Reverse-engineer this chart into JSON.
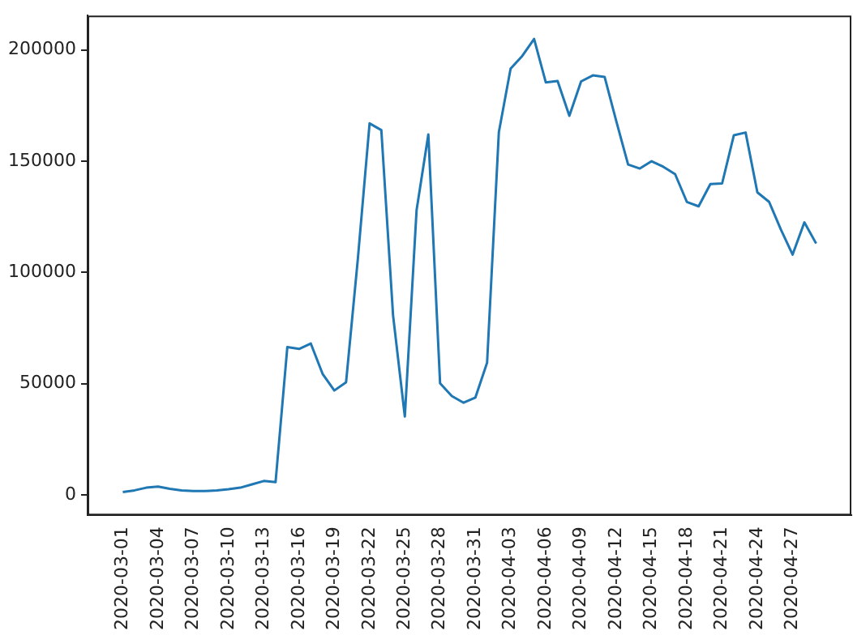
{
  "chart_data": {
    "type": "line",
    "x": [
      "2020-03-01",
      "2020-03-02",
      "2020-03-03",
      "2020-03-04",
      "2020-03-05",
      "2020-03-06",
      "2020-03-07",
      "2020-03-08",
      "2020-03-09",
      "2020-03-10",
      "2020-03-11",
      "2020-03-12",
      "2020-03-13",
      "2020-03-14",
      "2020-03-15",
      "2020-03-16",
      "2020-03-17",
      "2020-03-18",
      "2020-03-19",
      "2020-03-20",
      "2020-03-21",
      "2020-03-22",
      "2020-03-23",
      "2020-03-24",
      "2020-03-25",
      "2020-03-26",
      "2020-03-27",
      "2020-03-28",
      "2020-03-29",
      "2020-03-30",
      "2020-03-31",
      "2020-04-01",
      "2020-04-02",
      "2020-04-03",
      "2020-04-04",
      "2020-04-05",
      "2020-04-06",
      "2020-04-07",
      "2020-04-08",
      "2020-04-09",
      "2020-04-10",
      "2020-04-11",
      "2020-04-12",
      "2020-04-13",
      "2020-04-14",
      "2020-04-15",
      "2020-04-16",
      "2020-04-17",
      "2020-04-18",
      "2020-04-19",
      "2020-04-20",
      "2020-04-21",
      "2020-04-22",
      "2020-04-23",
      "2020-04-24",
      "2020-04-25",
      "2020-04-26",
      "2020-04-27",
      "2020-04-28",
      "2020-04-29"
    ],
    "series": [
      {
        "color": "#1f77b4",
        "values": [
          1200,
          2000,
          3200,
          3700,
          2700,
          2000,
          1700,
          1700,
          2000,
          2500,
          3200,
          4700,
          6200,
          5700,
          66400,
          65600,
          68000,
          54400,
          46900,
          50600,
          106000,
          167000,
          164000,
          80600,
          35200,
          128000,
          162000,
          50100,
          44400,
          41400,
          43700,
          59400,
          163000,
          191600,
          197400,
          205000,
          185400,
          186100,
          170400,
          185900,
          188600,
          187900,
          167900,
          148500,
          146700,
          150000,
          147500,
          144200,
          131700,
          129700,
          139700,
          140000,
          161700,
          162900,
          136000,
          131700,
          119300,
          108000,
          122500,
          113000
        ]
      }
    ],
    "xlim": [
      "2020-02-27",
      "2020-05-02"
    ],
    "xticks": [
      {
        "value": "2020-03-01",
        "label": "2020-03-01"
      },
      {
        "value": "2020-03-04",
        "label": "2020-03-04"
      },
      {
        "value": "2020-03-07",
        "label": "2020-03-07"
      },
      {
        "value": "2020-03-10",
        "label": "2020-03-10"
      },
      {
        "value": "2020-03-13",
        "label": "2020-03-13"
      },
      {
        "value": "2020-03-16",
        "label": "2020-03-16"
      },
      {
        "value": "2020-03-19",
        "label": "2020-03-19"
      },
      {
        "value": "2020-03-22",
        "label": "2020-03-22"
      },
      {
        "value": "2020-03-25",
        "label": "2020-03-25"
      },
      {
        "value": "2020-03-28",
        "label": "2020-03-28"
      },
      {
        "value": "2020-03-31",
        "label": "2020-03-31"
      },
      {
        "value": "2020-04-03",
        "label": "2020-04-03"
      },
      {
        "value": "2020-04-06",
        "label": "2020-04-06"
      },
      {
        "value": "2020-04-09",
        "label": "2020-04-09"
      },
      {
        "value": "2020-04-12",
        "label": "2020-04-12"
      },
      {
        "value": "2020-04-15",
        "label": "2020-04-15"
      },
      {
        "value": "2020-04-18",
        "label": "2020-04-18"
      },
      {
        "value": "2020-04-21",
        "label": "2020-04-21"
      },
      {
        "value": "2020-04-24",
        "label": "2020-04-24"
      },
      {
        "value": "2020-04-27",
        "label": "2020-04-27"
      }
    ],
    "ylim": [
      -9200,
      215500
    ],
    "yticks": [
      0,
      50000,
      100000,
      150000,
      200000
    ],
    "grid": false,
    "legend": false,
    "marker": "none",
    "line_style": "solid"
  }
}
